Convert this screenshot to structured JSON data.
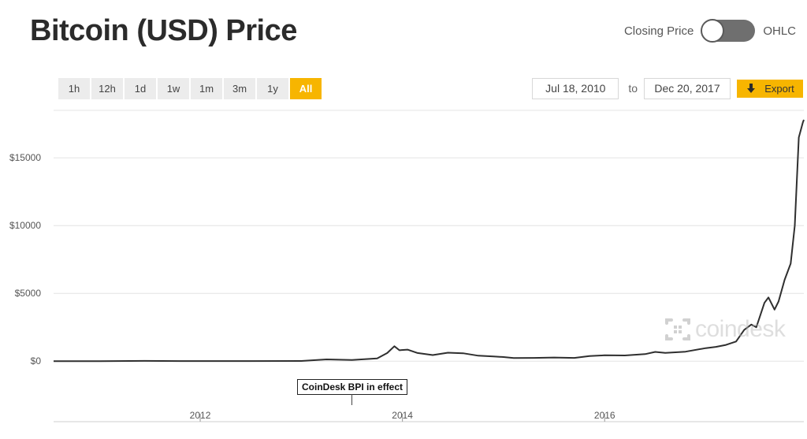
{
  "header": {
    "title": "Bitcoin (USD) Price",
    "toggle": {
      "left_label": "Closing Price",
      "right_label": "OHLC",
      "selected": "Closing Price"
    }
  },
  "range_buttons": [
    {
      "label": "1h"
    },
    {
      "label": "12h"
    },
    {
      "label": "1d"
    },
    {
      "label": "1w"
    },
    {
      "label": "1m"
    },
    {
      "label": "3m"
    },
    {
      "label": "1y"
    },
    {
      "label": "All",
      "active": true
    }
  ],
  "date_range": {
    "from": "Jul 18, 2010",
    "to_label": "to",
    "to": "Dec 20, 2017"
  },
  "export": {
    "label": "Export",
    "icon": "down-arrow-icon"
  },
  "colors": {
    "accent": "#f7b500",
    "line": "#2f2f2f",
    "grid": "#e4e4e4"
  },
  "annotation": {
    "text": "CoinDesk BPI in effect",
    "date": 2013.55
  },
  "watermark": {
    "text": "coindesk",
    "icon": "coindesk-logo-icon"
  },
  "chart_data": {
    "type": "line",
    "title": "Bitcoin (USD) Price",
    "xlabel": "",
    "ylabel": "",
    "x_unit": "year",
    "xlim": [
      2010.55,
      2017.97
    ],
    "ylim": [
      -1500,
      18500
    ],
    "y_ticks": [
      0,
      5000,
      10000,
      15000
    ],
    "y_tick_labels": [
      "$0",
      "$5000",
      "$10000",
      "$15000"
    ],
    "x_ticks": [
      2012,
      2014,
      2016
    ],
    "x_tick_labels": [
      "2012",
      "2014",
      "2016"
    ],
    "grid": true,
    "series": [
      {
        "name": "",
        "points": [
          [
            2010.55,
            0
          ],
          [
            2011.0,
            1
          ],
          [
            2011.45,
            15
          ],
          [
            2011.8,
            3
          ],
          [
            2012.5,
            7
          ],
          [
            2013.0,
            13
          ],
          [
            2013.25,
            130
          ],
          [
            2013.5,
            90
          ],
          [
            2013.75,
            200
          ],
          [
            2013.85,
            600
          ],
          [
            2013.92,
            1100
          ],
          [
            2013.97,
            800
          ],
          [
            2014.05,
            850
          ],
          [
            2014.15,
            600
          ],
          [
            2014.3,
            450
          ],
          [
            2014.45,
            620
          ],
          [
            2014.6,
            580
          ],
          [
            2014.75,
            400
          ],
          [
            2014.9,
            350
          ],
          [
            2015.0,
            300
          ],
          [
            2015.1,
            230
          ],
          [
            2015.3,
            240
          ],
          [
            2015.5,
            270
          ],
          [
            2015.7,
            240
          ],
          [
            2015.85,
            370
          ],
          [
            2016.0,
            430
          ],
          [
            2016.2,
            420
          ],
          [
            2016.4,
            520
          ],
          [
            2016.5,
            680
          ],
          [
            2016.6,
            610
          ],
          [
            2016.8,
            700
          ],
          [
            2017.0,
            960
          ],
          [
            2017.1,
            1050
          ],
          [
            2017.2,
            1200
          ],
          [
            2017.3,
            1450
          ],
          [
            2017.38,
            2300
          ],
          [
            2017.45,
            2700
          ],
          [
            2017.5,
            2500
          ],
          [
            2017.58,
            4300
          ],
          [
            2017.62,
            4700
          ],
          [
            2017.68,
            3800
          ],
          [
            2017.72,
            4400
          ],
          [
            2017.78,
            6000
          ],
          [
            2017.84,
            7200
          ],
          [
            2017.88,
            10000
          ],
          [
            2017.92,
            16500
          ],
          [
            2017.96,
            17600
          ],
          [
            2017.97,
            17800
          ]
        ]
      }
    ]
  }
}
